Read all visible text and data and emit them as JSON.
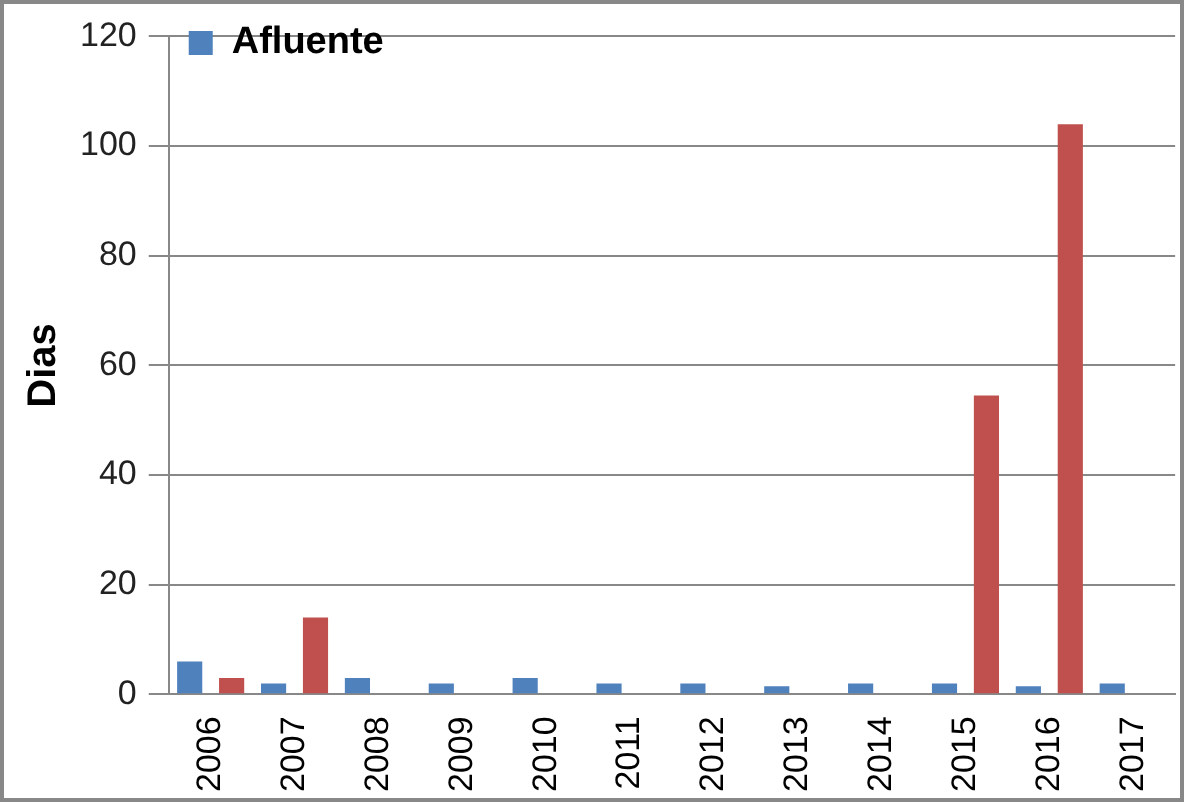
{
  "chart_data": {
    "type": "bar",
    "ylabel": "Dias",
    "categories": [
      "2006",
      "2007",
      "2008",
      "2009",
      "2010",
      "2011",
      "2012",
      "2013",
      "2014",
      "2015",
      "2016",
      "2017"
    ],
    "series": [
      {
        "name": "Afluente",
        "color": "#4f81bd",
        "values": [
          6,
          2,
          3,
          2,
          3,
          2,
          2,
          1.5,
          2,
          2,
          1.5,
          2
        ]
      },
      {
        "color": "#c0504d",
        "values": [
          3,
          14,
          0,
          0,
          0,
          0,
          0,
          0,
          0,
          54.5,
          104,
          0
        ]
      }
    ],
    "ylim": [
      0,
      120
    ],
    "yticks": [
      0,
      20,
      40,
      60,
      80,
      100,
      120
    ],
    "grid": "y",
    "legend": "top left"
  }
}
